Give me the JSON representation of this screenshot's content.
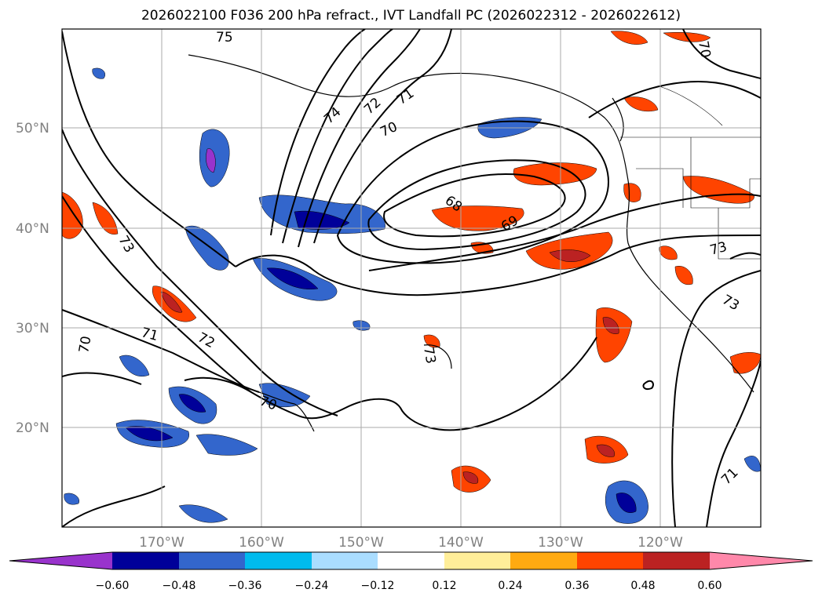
{
  "title": "2026022100 F036 200 hPa refract., IVT Landfall PC (2026022312 - 2026022612)",
  "map": {
    "lat_labels": [
      "50°N",
      "40°N",
      "30°N",
      "20°N"
    ],
    "lon_labels": [
      "170°W",
      "160°W",
      "150°W",
      "140°W",
      "130°W",
      "120°W"
    ],
    "contour_labels": [
      "75",
      "74",
      "72",
      "71",
      "70",
      "68",
      "69",
      "73",
      "73",
      "73",
      "71",
      "72",
      "70",
      "70",
      "73",
      "71",
      "70"
    ]
  },
  "colorbar": {
    "ticks": [
      "−0.60",
      "−0.48",
      "−0.36",
      "−0.24",
      "−0.12",
      "0.12",
      "0.24",
      "0.36",
      "0.48",
      "0.60"
    ],
    "colors": [
      "#9933cc",
      "#000099",
      "#3366cc",
      "#00bbee",
      "#aaddff",
      "#ffffff",
      "#ffee99",
      "#ffaa11",
      "#ff4400",
      "#bb2222",
      "#ff88aa"
    ],
    "extend": "both"
  }
}
